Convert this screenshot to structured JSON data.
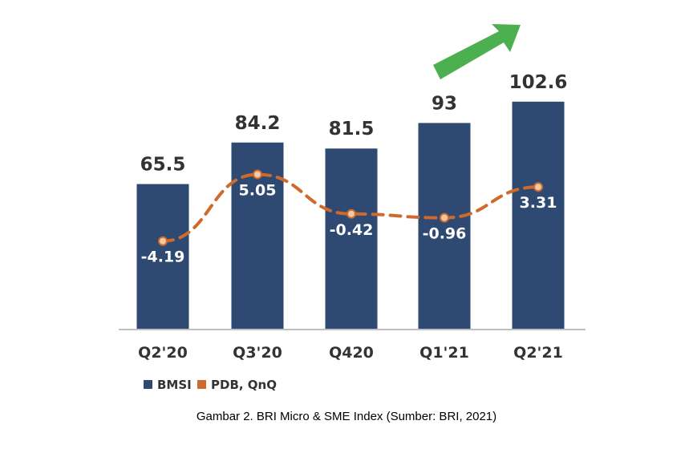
{
  "chart_data": {
    "type": "bar",
    "categories": [
      "Q2'20",
      "Q3'20",
      "Q420",
      "Q1'21",
      "Q2'21"
    ],
    "series": [
      {
        "name": "BMSI",
        "type": "bar",
        "values": [
          65.5,
          84.2,
          81.5,
          93,
          102.6
        ],
        "labels": [
          "65.5",
          "84.2",
          "81.5",
          "93",
          "102.6"
        ]
      },
      {
        "name": "PDB, QnQ",
        "type": "line",
        "values": [
          -4.19,
          5.05,
          -0.42,
          -0.96,
          3.31
        ],
        "labels": [
          "-4.19",
          "5.05",
          "-0.42",
          "-0.96",
          "3.31"
        ]
      }
    ],
    "legend_position": "bottom-left",
    "grid": false,
    "annotation": "green trend arrow pointing up-right",
    "colors": {
      "bar": "#2e4a73",
      "line": "#cf6a2d",
      "arrow": "#4caf50",
      "axis": "#bfbfbf"
    }
  },
  "caption": "Gambar 2. BRI Micro & SME Index (Sumber: BRI, 2021)"
}
